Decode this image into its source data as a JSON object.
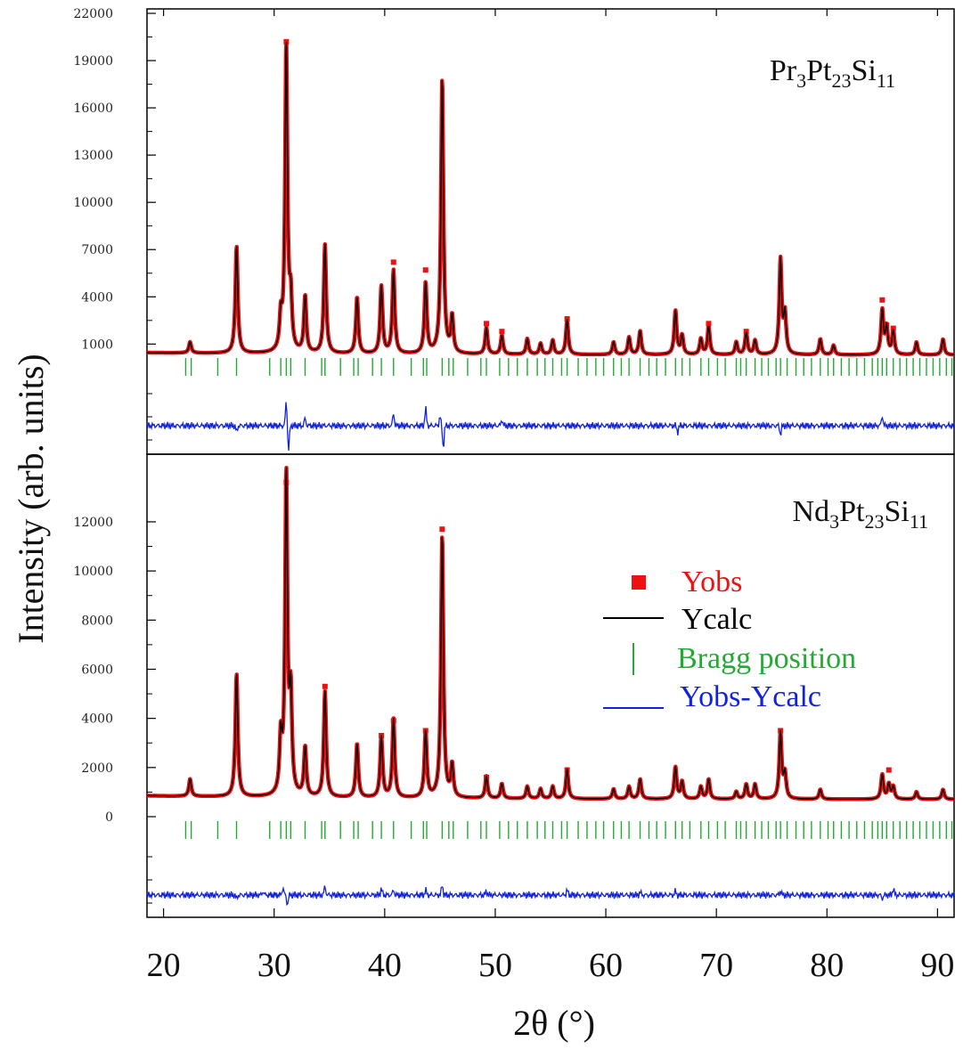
{
  "chart_data": {
    "type": "line",
    "x_label": "2θ (°)",
    "y_label": "Intensity (arb. units)",
    "x_range": [
      18.5,
      91.5
    ],
    "x_ticks": [
      "20",
      "30",
      "40",
      "50",
      "60",
      "70",
      "80",
      "90"
    ],
    "x_tick_values": [
      20,
      30,
      40,
      50,
      60,
      70,
      80,
      90
    ],
    "legend": {
      "placement": "right of lower panel",
      "entries": [
        {
          "label": "Yobs",
          "color": "#ee1111",
          "symbol": "square"
        },
        {
          "label": "Ycalc",
          "color": "#000000",
          "symbol": "line"
        },
        {
          "label": "Bragg position",
          "color": "#22aa33",
          "symbol": "tick"
        },
        {
          "label": "Yobs-Ycalc",
          "color": "#1122dd",
          "symbol": "line"
        }
      ]
    },
    "panels": [
      {
        "compound_base": "Pr",
        "compound_sub1": "3",
        "compound_mid": "Pt",
        "compound_sub2": "23",
        "compound_end": "Si",
        "compound_sub3": "11",
        "y_ticks": [
          "1000",
          "4000",
          "7000",
          "10000",
          "13000",
          "16000",
          "19000",
          "22000"
        ],
        "y_tick_values": [
          1000,
          4000,
          7000,
          10000,
          13000,
          16000,
          19000,
          22000
        ],
        "y_range": [
          0,
          22000
        ],
        "background": 300,
        "peaks": [
          {
            "x": 22.4,
            "i": 700
          },
          {
            "x": 26.6,
            "i": 6800
          },
          {
            "x": 30.6,
            "i": 2000
          },
          {
            "x": 31.1,
            "i": 19500
          },
          {
            "x": 31.5,
            "i": 3000
          },
          {
            "x": 32.8,
            "i": 3600
          },
          {
            "x": 34.6,
            "i": 6900
          },
          {
            "x": 37.5,
            "i": 3600
          },
          {
            "x": 39.7,
            "i": 4300
          },
          {
            "x": 40.8,
            "i": 5300
          },
          {
            "x": 43.7,
            "i": 4500
          },
          {
            "x": 45.2,
            "i": 17500
          },
          {
            "x": 46.1,
            "i": 2300
          },
          {
            "x": 49.2,
            "i": 1700
          },
          {
            "x": 50.6,
            "i": 1200
          },
          {
            "x": 52.9,
            "i": 1000
          },
          {
            "x": 54.1,
            "i": 700
          },
          {
            "x": 55.2,
            "i": 900
          },
          {
            "x": 56.5,
            "i": 2200
          },
          {
            "x": 60.7,
            "i": 800
          },
          {
            "x": 62.1,
            "i": 1100
          },
          {
            "x": 63.1,
            "i": 1500
          },
          {
            "x": 66.3,
            "i": 2800
          },
          {
            "x": 66.9,
            "i": 1200
          },
          {
            "x": 68.6,
            "i": 1000
          },
          {
            "x": 69.3,
            "i": 1800
          },
          {
            "x": 71.8,
            "i": 800
          },
          {
            "x": 72.7,
            "i": 1400
          },
          {
            "x": 73.5,
            "i": 900
          },
          {
            "x": 75.8,
            "i": 6000
          },
          {
            "x": 76.2,
            "i": 2500
          },
          {
            "x": 79.4,
            "i": 1000
          },
          {
            "x": 80.6,
            "i": 600
          },
          {
            "x": 85.0,
            "i": 2800
          },
          {
            "x": 85.4,
            "i": 1700
          },
          {
            "x": 86.0,
            "i": 1500
          },
          {
            "x": 88.1,
            "i": 800
          },
          {
            "x": 90.5,
            "i": 1000
          }
        ],
        "obs_markers": [
          {
            "x": 31.1,
            "y": 20200
          },
          {
            "x": 40.8,
            "y": 6200
          },
          {
            "x": 43.7,
            "y": 5700
          },
          {
            "x": 49.2,
            "y": 2300
          },
          {
            "x": 50.6,
            "y": 1800
          },
          {
            "x": 56.5,
            "y": 2600
          },
          {
            "x": 69.3,
            "y": 2300
          },
          {
            "x": 72.7,
            "y": 1800
          },
          {
            "x": 85.0,
            "y": 3800
          },
          {
            "x": 85.4,
            "y": 2200
          },
          {
            "x": 86.0,
            "y": 2000
          }
        ],
        "bragg_positions": [
          22.0,
          22.5,
          24.9,
          26.6,
          29.6,
          30.6,
          31.1,
          31.5,
          32.8,
          34.3,
          34.6,
          36.0,
          37.2,
          37.6,
          38.9,
          39.7,
          40.8,
          42.4,
          43.5,
          43.8,
          45.2,
          45.8,
          46.2,
          47.5,
          48.7,
          49.2,
          50.4,
          51.2,
          52.0,
          52.9,
          53.8,
          54.5,
          55.2,
          56.0,
          56.5,
          57.5,
          58.3,
          59.1,
          59.8,
          60.7,
          61.4,
          62.1,
          63.1,
          63.9,
          64.6,
          65.4,
          66.3,
          66.9,
          67.6,
          68.6,
          69.3,
          70.1,
          70.8,
          71.8,
          72.2,
          72.7,
          73.5,
          74.1,
          74.7,
          75.4,
          75.8,
          76.4,
          77.2,
          77.9,
          78.6,
          79.4,
          80.1,
          80.6,
          81.3,
          82.0,
          82.7,
          83.4,
          84.1,
          84.6,
          85.0,
          85.4,
          86.0,
          86.6,
          87.2,
          87.8,
          88.4,
          89.0,
          89.6,
          90.2,
          90.8,
          91.3
        ],
        "diff_spikes": [
          {
            "x": 26.6,
            "d": -1
          },
          {
            "x": 31.1,
            "d": 4
          },
          {
            "x": 31.3,
            "d": -4
          },
          {
            "x": 32.8,
            "d": 1.2
          },
          {
            "x": 40.8,
            "d": 2
          },
          {
            "x": 43.7,
            "d": 2.8
          },
          {
            "x": 45.0,
            "d": 1.5
          },
          {
            "x": 45.3,
            "d": -3.5
          },
          {
            "x": 50.6,
            "d": 1
          },
          {
            "x": 66.5,
            "d": -1
          },
          {
            "x": 75.8,
            "d": -1.4
          },
          {
            "x": 85.0,
            "d": 1.6
          }
        ]
      },
      {
        "compound_base": "Nd",
        "compound_sub1": "3",
        "compound_mid": "Pt",
        "compound_sub2": "23",
        "compound_end": "Si",
        "compound_sub3": "11",
        "y_ticks": [
          "0",
          "2000",
          "4000",
          "6000",
          "8000",
          "10000",
          "12000"
        ],
        "y_tick_values": [
          0,
          2000,
          4000,
          6000,
          8000,
          10000,
          12000
        ],
        "y_range": [
          -4300,
          14100
        ],
        "background": 700,
        "peaks": [
          {
            "x": 22.4,
            "i": 700
          },
          {
            "x": 26.6,
            "i": 5000
          },
          {
            "x": 30.6,
            "i": 2200
          },
          {
            "x": 31.1,
            "i": 13000
          },
          {
            "x": 31.5,
            "i": 3800
          },
          {
            "x": 32.8,
            "i": 2000
          },
          {
            "x": 34.6,
            "i": 4300
          },
          {
            "x": 37.5,
            "i": 2200
          },
          {
            "x": 39.7,
            "i": 2500
          },
          {
            "x": 40.8,
            "i": 3200
          },
          {
            "x": 43.7,
            "i": 2700
          },
          {
            "x": 45.2,
            "i": 10700
          },
          {
            "x": 46.1,
            "i": 1300
          },
          {
            "x": 49.2,
            "i": 900
          },
          {
            "x": 50.6,
            "i": 600
          },
          {
            "x": 52.9,
            "i": 500
          },
          {
            "x": 54.1,
            "i": 400
          },
          {
            "x": 55.2,
            "i": 500
          },
          {
            "x": 56.5,
            "i": 1200
          },
          {
            "x": 60.7,
            "i": 400
          },
          {
            "x": 62.1,
            "i": 500
          },
          {
            "x": 63.1,
            "i": 800
          },
          {
            "x": 66.3,
            "i": 1300
          },
          {
            "x": 66.9,
            "i": 700
          },
          {
            "x": 68.6,
            "i": 500
          },
          {
            "x": 69.3,
            "i": 800
          },
          {
            "x": 71.8,
            "i": 300
          },
          {
            "x": 72.7,
            "i": 600
          },
          {
            "x": 73.5,
            "i": 600
          },
          {
            "x": 75.8,
            "i": 2700
          },
          {
            "x": 76.2,
            "i": 1000
          },
          {
            "x": 79.4,
            "i": 400
          },
          {
            "x": 85.0,
            "i": 1000
          },
          {
            "x": 85.6,
            "i": 600
          },
          {
            "x": 86.0,
            "i": 500
          },
          {
            "x": 88.1,
            "i": 300
          },
          {
            "x": 90.5,
            "i": 400
          }
        ],
        "obs_markers": [
          {
            "x": 31.1,
            "y": 13600
          },
          {
            "x": 34.6,
            "y": 5300
          },
          {
            "x": 39.7,
            "y": 3300
          },
          {
            "x": 40.8,
            "y": 3900
          },
          {
            "x": 43.7,
            "y": 3500
          },
          {
            "x": 45.2,
            "y": 11700
          },
          {
            "x": 49.2,
            "y": 1600
          },
          {
            "x": 56.5,
            "y": 1900
          },
          {
            "x": 75.8,
            "y": 3500
          },
          {
            "x": 85.6,
            "y": 1900
          }
        ],
        "bragg_positions": [
          22.0,
          22.5,
          24.9,
          26.6,
          29.6,
          30.6,
          31.1,
          31.5,
          32.8,
          34.3,
          34.6,
          36.0,
          37.2,
          37.6,
          38.9,
          39.7,
          40.8,
          42.4,
          43.5,
          43.8,
          45.2,
          45.8,
          46.2,
          47.5,
          48.7,
          49.2,
          50.4,
          51.2,
          52.0,
          52.9,
          53.8,
          54.5,
          55.2,
          56.0,
          56.5,
          57.5,
          58.3,
          59.1,
          59.8,
          60.7,
          61.4,
          62.1,
          63.1,
          63.9,
          64.6,
          65.4,
          66.3,
          66.9,
          67.6,
          68.6,
          69.3,
          70.1,
          70.8,
          71.8,
          72.2,
          72.7,
          73.5,
          74.1,
          74.7,
          75.4,
          75.8,
          76.4,
          77.2,
          77.9,
          78.6,
          79.4,
          80.1,
          80.6,
          81.3,
          82.0,
          82.7,
          83.4,
          84.1,
          84.6,
          85.0,
          85.4,
          86.0,
          86.6,
          87.2,
          87.8,
          88.4,
          89.0,
          89.6,
          90.2,
          90.8,
          91.3
        ],
        "diff_spikes": [
          {
            "x": 26.6,
            "d": -0.6
          },
          {
            "x": 29.0,
            "d": 0.6
          },
          {
            "x": 30.8,
            "d": 1.2
          },
          {
            "x": 31.2,
            "d": -1.5
          },
          {
            "x": 34.6,
            "d": 1.4
          },
          {
            "x": 39.7,
            "d": 1
          },
          {
            "x": 40.8,
            "d": 0.8
          },
          {
            "x": 43.7,
            "d": 0.8
          },
          {
            "x": 45.2,
            "d": 1.6
          },
          {
            "x": 49.2,
            "d": 0.6
          },
          {
            "x": 56.5,
            "d": 0.8
          },
          {
            "x": 63.1,
            "d": 0.5
          },
          {
            "x": 66.3,
            "d": 0.6
          },
          {
            "x": 75.8,
            "d": 0.7
          },
          {
            "x": 85.0,
            "d": -0.6
          },
          {
            "x": 86.0,
            "d": 1
          }
        ]
      }
    ]
  }
}
